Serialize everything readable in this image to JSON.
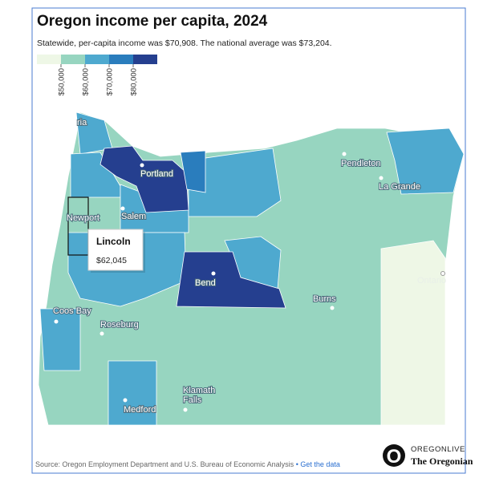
{
  "header": {
    "title": "Oregon income per capita, 2024",
    "subtitle": "Statewide, per-capita income was $70,908. The national average was $73,204."
  },
  "legend": {
    "colors": [
      "#eef7e6",
      "#97d5c0",
      "#4ea9cf",
      "#2a7dbd",
      "#253f8f"
    ],
    "labels": [
      "$50,000",
      "$60,000",
      "$70,000",
      "$80,000"
    ]
  },
  "map": {
    "cities": [
      "ria",
      "Portland",
      "Salem",
      "Newport",
      "Pendleton",
      "La Grande",
      "Bend",
      "Burns",
      "Coos Bay",
      "Roseburg",
      "Medford",
      "Ontario"
    ],
    "klamath_falls": [
      "Klamath",
      "Falls"
    ]
  },
  "tooltip": {
    "county": "Lincoln",
    "value": "$62,045"
  },
  "footer": {
    "source": "Source: Oregon Employment Department and U.S. Bureau of Economic Analysis",
    "separator": "•",
    "link": "Get the data"
  },
  "logo": {
    "top": "OREGONLIVE",
    "bottom": "The Oregonian"
  }
}
